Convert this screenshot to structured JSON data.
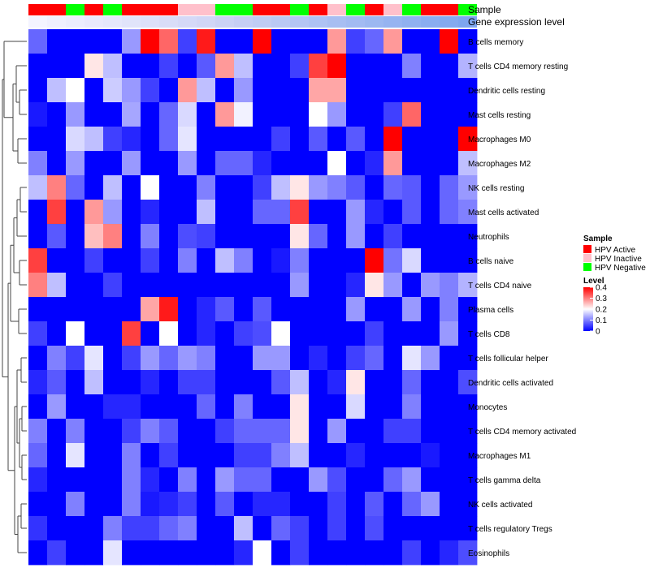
{
  "chart_data": {
    "type": "heatmap",
    "annotations": {
      "sample_label": "Sample",
      "gene_label": "Gene expression level",
      "sample_groups": [
        "HPV Active",
        "HPV Active",
        "HPV Negative",
        "HPV Active",
        "HPV Negative",
        "HPV Active",
        "HPV Active",
        "HPV Active",
        "HPV Inactive",
        "HPV Inactive",
        "HPV Negative",
        "HPV Negative",
        "HPV Active",
        "HPV Active",
        "HPV Negative",
        "HPV Active",
        "HPV Inactive",
        "HPV Negative",
        "HPV Active",
        "HPV Inactive",
        "HPV Negative",
        "HPV Active",
        "HPV Active",
        "HPV Negative"
      ],
      "gene_expression_colors": [
        "#f4f4ff",
        "#f0f0fe",
        "#ecedfd",
        "#e9e9fc",
        "#e5e7fb",
        "#e1e4fa",
        "#dde0f9",
        "#d9ddf8",
        "#d5d9f7",
        "#d1d6f6",
        "#cbd2f5",
        "#c6cef4",
        "#c0ccf4",
        "#bac9f4",
        "#b4c5f3",
        "#aec2f3",
        "#a8bef2",
        "#a2bbf2",
        "#9cb8f1",
        "#96b4f1",
        "#90b1f0",
        "#8aadf0",
        "#84aaef",
        "#7ea6ef"
      ]
    },
    "rows": [
      "B cells memory",
      "T cells CD4 memory resting",
      "Dendritic cells resting",
      "Mast cells resting",
      "Macrophages M0",
      "Macrophages M2",
      "NK cells resting",
      "Mast cells activated",
      "Neutrophils",
      "B cells naive",
      "T cells CD4 naive",
      "Plasma cells",
      "T cells CD8",
      "T cells follicular helper",
      "Dendritic cells activated",
      "Monocytes",
      "T cells CD4 memory activated",
      "Macrophages M1",
      "T cells gamma delta",
      "NK cells activated",
      "T cells regulatory  Tregs",
      "Eosinophils"
    ],
    "values": [
      [
        0.08,
        0,
        0,
        0,
        0,
        0.12,
        0.4,
        0.32,
        0.05,
        0.38,
        0,
        0,
        0.4,
        0,
        0,
        0,
        0.28,
        0.05,
        0.08,
        0.28,
        0,
        0,
        0.4,
        0
      ],
      [
        0,
        0,
        0,
        0.22,
        0.15,
        0,
        0,
        0.05,
        0,
        0.07,
        0.28,
        0.15,
        0,
        0,
        0.05,
        0.35,
        0.4,
        0,
        0,
        0,
        0.1,
        0,
        0,
        0.14
      ],
      [
        0,
        0.15,
        0.2,
        0,
        0.16,
        0.12,
        0.05,
        0,
        0.28,
        0.15,
        0,
        0.12,
        0,
        0,
        0,
        0.27,
        0.27,
        0,
        0,
        0,
        0,
        0,
        0,
        0
      ],
      [
        0.02,
        0,
        0.12,
        0,
        0,
        0.13,
        0,
        0.08,
        0.17,
        0,
        0.28,
        0.19,
        0,
        0,
        0,
        0.2,
        0.12,
        0,
        0,
        0.05,
        0.32,
        0,
        0,
        0
      ],
      [
        0,
        0,
        0.17,
        0.15,
        0.05,
        0.03,
        0,
        0.08,
        0.18,
        0,
        0,
        0,
        0,
        0.05,
        0,
        0.07,
        0,
        0.07,
        0,
        0.4,
        0,
        0,
        0,
        0.4
      ],
      [
        0.1,
        0,
        0.12,
        0,
        0,
        0.12,
        0,
        0,
        0.12,
        0,
        0.08,
        0.08,
        0.03,
        0,
        0,
        0,
        0.2,
        0,
        0.03,
        0.28,
        0,
        0,
        0,
        0.15
      ],
      [
        0.15,
        0.3,
        0.08,
        0,
        0.15,
        0,
        0.2,
        0,
        0,
        0.1,
        0,
        0,
        0.05,
        0.15,
        0.22,
        0.12,
        0.1,
        0.07,
        0,
        0.08,
        0.07,
        0,
        0.08,
        0.12
      ],
      [
        0,
        0.35,
        0,
        0.28,
        0.12,
        0,
        0.03,
        0,
        0,
        0.15,
        0,
        0,
        0.08,
        0.08,
        0.35,
        0,
        0,
        0.12,
        0.03,
        0,
        0.07,
        0,
        0.08,
        0.1
      ],
      [
        0,
        0.07,
        0,
        0.25,
        0.3,
        0,
        0.1,
        0,
        0.06,
        0.05,
        0,
        0,
        0,
        0,
        0.22,
        0.08,
        0,
        0.12,
        0,
        0.05,
        0,
        0,
        0,
        0
      ],
      [
        0.35,
        0,
        0,
        0.05,
        0,
        0,
        0.05,
        0,
        0.1,
        0,
        0.15,
        0.1,
        0,
        0.02,
        0.1,
        0,
        0,
        0,
        0.4,
        0.09,
        0.17,
        0,
        0,
        0
      ],
      [
        0.3,
        0.15,
        0,
        0,
        0.05,
        0,
        0,
        0,
        0,
        0,
        0,
        0,
        0,
        0,
        0.12,
        0,
        0,
        0.03,
        0.22,
        0.12,
        0,
        0.12,
        0.1,
        0.14
      ],
      [
        0,
        0,
        0,
        0,
        0,
        0,
        0.27,
        0.38,
        0,
        0.03,
        0.07,
        0,
        0.07,
        0,
        0,
        0,
        0,
        0.12,
        0,
        0,
        0.12,
        0,
        0.1,
        0
      ],
      [
        0.05,
        0,
        0.2,
        0,
        0,
        0.35,
        0,
        0.2,
        0,
        0.03,
        0,
        0.05,
        0.06,
        0.2,
        0,
        0,
        0,
        0,
        0.05,
        0,
        0,
        0,
        0.12,
        0
      ],
      [
        0,
        0.1,
        0.05,
        0.18,
        0,
        0.05,
        0.12,
        0.08,
        0.12,
        0.1,
        0,
        0,
        0.12,
        0.12,
        0,
        0.03,
        0,
        0.05,
        0.08,
        0,
        0.18,
        0.12,
        0,
        0
      ],
      [
        0.03,
        0.07,
        0,
        0.15,
        0,
        0,
        0.03,
        0,
        0.05,
        0.05,
        0,
        0,
        0,
        0.07,
        0.15,
        0,
        0.03,
        0.22,
        0,
        0,
        0.08,
        0,
        0,
        0.06
      ],
      [
        0,
        0.12,
        0,
        0,
        0.03,
        0.03,
        0,
        0,
        0,
        0.08,
        0,
        0.1,
        0,
        0,
        0.22,
        0,
        0,
        0.17,
        0,
        0,
        0.1,
        0,
        0,
        0
      ],
      [
        0.1,
        0,
        0.1,
        0,
        0,
        0.05,
        0.1,
        0.07,
        0,
        0,
        0.05,
        0.08,
        0.08,
        0.08,
        0.22,
        0,
        0.12,
        0,
        0,
        0.05,
        0.05,
        0,
        0,
        0
      ],
      [
        0.08,
        0,
        0.18,
        0,
        0,
        0.1,
        0,
        0.05,
        0,
        0,
        0,
        0.05,
        0.05,
        0.1,
        0.15,
        0,
        0,
        0.03,
        0,
        0,
        0,
        0.02,
        0,
        0
      ],
      [
        0.03,
        0,
        0,
        0,
        0,
        0.1,
        0.03,
        0,
        0.1,
        0,
        0.12,
        0.08,
        0.08,
        0,
        0,
        0.12,
        0.06,
        0,
        0,
        0.08,
        0.12,
        0,
        0,
        0
      ],
      [
        0,
        0,
        0.1,
        0,
        0,
        0.1,
        0.02,
        0.03,
        0.05,
        0,
        0.07,
        0,
        0.03,
        0.03,
        0,
        0,
        0.05,
        0,
        0.07,
        0,
        0.08,
        0.12,
        0,
        0
      ],
      [
        0.04,
        0,
        0,
        0,
        0.1,
        0.05,
        0.05,
        0.08,
        0.1,
        0,
        0,
        0.15,
        0,
        0.08,
        0.05,
        0,
        0.05,
        0,
        0.06,
        0,
        0,
        0,
        0,
        0
      ],
      [
        0,
        0.05,
        0,
        0,
        0.18,
        0,
        0,
        0,
        0,
        0,
        0,
        0.03,
        0.2,
        0,
        0.05,
        0,
        0,
        0,
        0,
        0,
        0.05,
        0,
        0.03,
        0.06
      ]
    ],
    "legend": {
      "sample_title": "Sample",
      "sample_entries": [
        {
          "label": "HPV Active",
          "color": "#ff0000"
        },
        {
          "label": "HPV Inactive",
          "color": "#ffc0cb"
        },
        {
          "label": "HPV Negative",
          "color": "#00ff00"
        }
      ],
      "level_title": "Level",
      "level_ticks": [
        "0.4",
        "0.3",
        "0.2",
        "0.1",
        "0"
      ],
      "level_range": [
        0,
        0.4
      ]
    },
    "colors": {
      "low": "#0000ff",
      "mid": "#ffffff",
      "high": "#ff0000",
      "tree": "#444444"
    }
  }
}
